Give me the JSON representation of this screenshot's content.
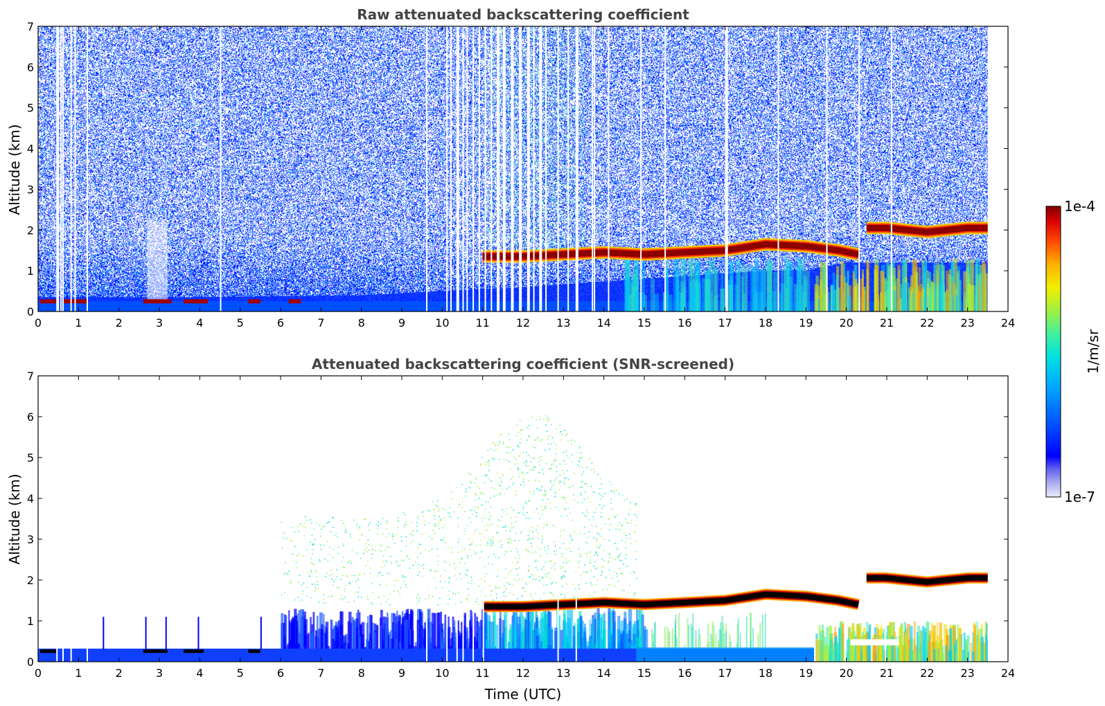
{
  "chart_data": [
    {
      "type": "heatmap",
      "title": "Raw attenuated backscattering coefficient",
      "ylabel": "Altitude (km)",
      "xlabel": "",
      "xlim": [
        0,
        24
      ],
      "ylim": [
        0,
        7
      ],
      "x_ticks": [
        "0",
        "1",
        "2",
        "3",
        "4",
        "5",
        "6",
        "7",
        "8",
        "9",
        "10",
        "11",
        "12",
        "13",
        "14",
        "15",
        "16",
        "17",
        "18",
        "19",
        "20",
        "21",
        "22",
        "23",
        "24"
      ],
      "y_ticks": [
        "0",
        "1",
        "2",
        "3",
        "4",
        "5",
        "6",
        "7"
      ],
      "data_end_time": 23.5,
      "features": {
        "cloud_layer": [
          [
            11.0,
            1.35
          ],
          [
            12.0,
            1.35
          ],
          [
            13.0,
            1.4
          ],
          [
            14.0,
            1.45
          ],
          [
            15.0,
            1.4
          ],
          [
            16.0,
            1.45
          ],
          [
            17.0,
            1.5
          ],
          [
            18.0,
            1.65
          ],
          [
            19.0,
            1.6
          ],
          [
            19.8,
            1.5
          ],
          [
            20.3,
            1.4
          ]
        ],
        "upper_cloud_layer": [
          [
            20.5,
            2.05
          ],
          [
            21.0,
            2.05
          ],
          [
            21.5,
            2.0
          ],
          [
            22.0,
            1.95
          ],
          [
            22.5,
            2.0
          ],
          [
            23.0,
            2.05
          ],
          [
            23.5,
            2.05
          ]
        ],
        "boundary_layer_top": [
          [
            0,
            0.35
          ],
          [
            4,
            0.35
          ],
          [
            8,
            0.4
          ],
          [
            12,
            0.6
          ],
          [
            15,
            0.8
          ],
          [
            18,
            1.0
          ],
          [
            19,
            1.0
          ],
          [
            20,
            1.2
          ],
          [
            22,
            1.2
          ],
          [
            23.5,
            1.2
          ]
        ]
      }
    },
    {
      "type": "heatmap",
      "title": "Attenuated backscattering coefficient (SNR-screened)",
      "ylabel": "Altitude (km)",
      "xlabel": "Time (UTC)",
      "xlim": [
        0,
        24
      ],
      "ylim": [
        0,
        7
      ],
      "x_ticks": [
        "0",
        "1",
        "2",
        "3",
        "4",
        "5",
        "6",
        "7",
        "8",
        "9",
        "10",
        "11",
        "12",
        "13",
        "14",
        "15",
        "16",
        "17",
        "18",
        "19",
        "20",
        "21",
        "22",
        "23",
        "24"
      ],
      "y_ticks": [
        "0",
        "1",
        "2",
        "3",
        "4",
        "5",
        "6",
        "7"
      ],
      "data_end_time": 23.5
    }
  ],
  "colorbar": {
    "label": "1/m/sr",
    "max_label": "1e-4",
    "min_label": "1e-7",
    "scale": "log",
    "range": [
      1e-07,
      0.0001
    ],
    "colormap": [
      "#e8e8fa",
      "#aaaaf0",
      "#6464f0",
      "#0000ff",
      "#0050ff",
      "#00a0ff",
      "#00e0e0",
      "#40f0a0",
      "#a0f040",
      "#f0f000",
      "#ffb000",
      "#ff5000",
      "#e00000",
      "#800000"
    ]
  }
}
